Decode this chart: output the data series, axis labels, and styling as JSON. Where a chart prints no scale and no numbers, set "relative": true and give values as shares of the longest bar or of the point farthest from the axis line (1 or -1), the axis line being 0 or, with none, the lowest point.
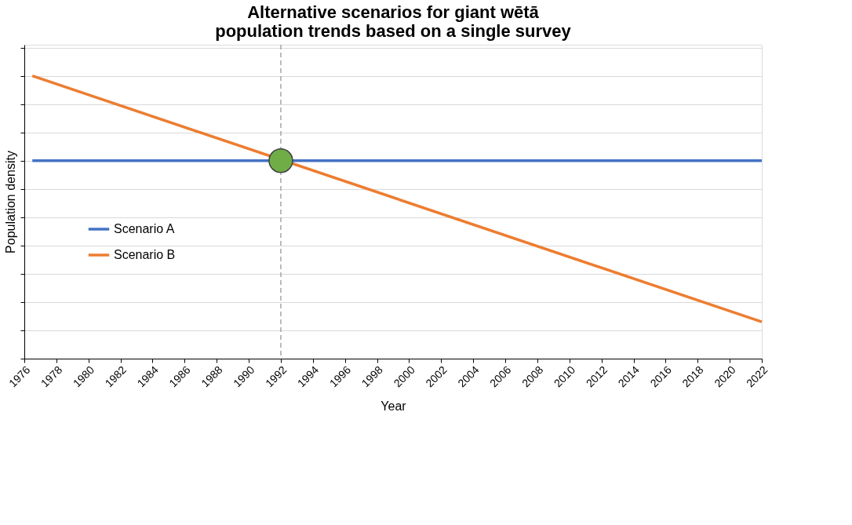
{
  "chart_data": {
    "type": "line",
    "title": "Alternative scenarios for giant wētā population trends based on a single survey",
    "xlabel": "Year",
    "ylabel": "Population density",
    "relative": true,
    "tick_labels": "x",
    "grid": "y",
    "legend": "left",
    "marker": "none",
    "line_style": "solid",
    "xlim": [
      1976,
      2022
    ],
    "xticks": [
      1976,
      1978,
      1980,
      1982,
      1984,
      1986,
      1988,
      1990,
      1992,
      1994,
      1996,
      1998,
      2000,
      2002,
      2004,
      2006,
      2008,
      2010,
      2012,
      2014,
      2016,
      2018,
      2020,
      2022
    ],
    "series": [
      {
        "name": "Scenario A",
        "color": "#4472c4",
        "x": [
          1976.5,
          2022
        ],
        "values": [
          0.7,
          0.7
        ]
      },
      {
        "name": "Scenario B",
        "color": "#ed7d31",
        "x": [
          1976.5,
          2022
        ],
        "values": [
          1,
          0.13
        ]
      },
      {
        "type": "scatter",
        "marker": "circle",
        "color": "#70ad47",
        "x": [
          1992
        ],
        "values": [
          0.7
        ]
      }
    ],
    "ref_lines": [
      {
        "axis": "x",
        "value": 1992,
        "color": "#a6a6a6",
        "line_style": "dashed"
      }
    ]
  }
}
